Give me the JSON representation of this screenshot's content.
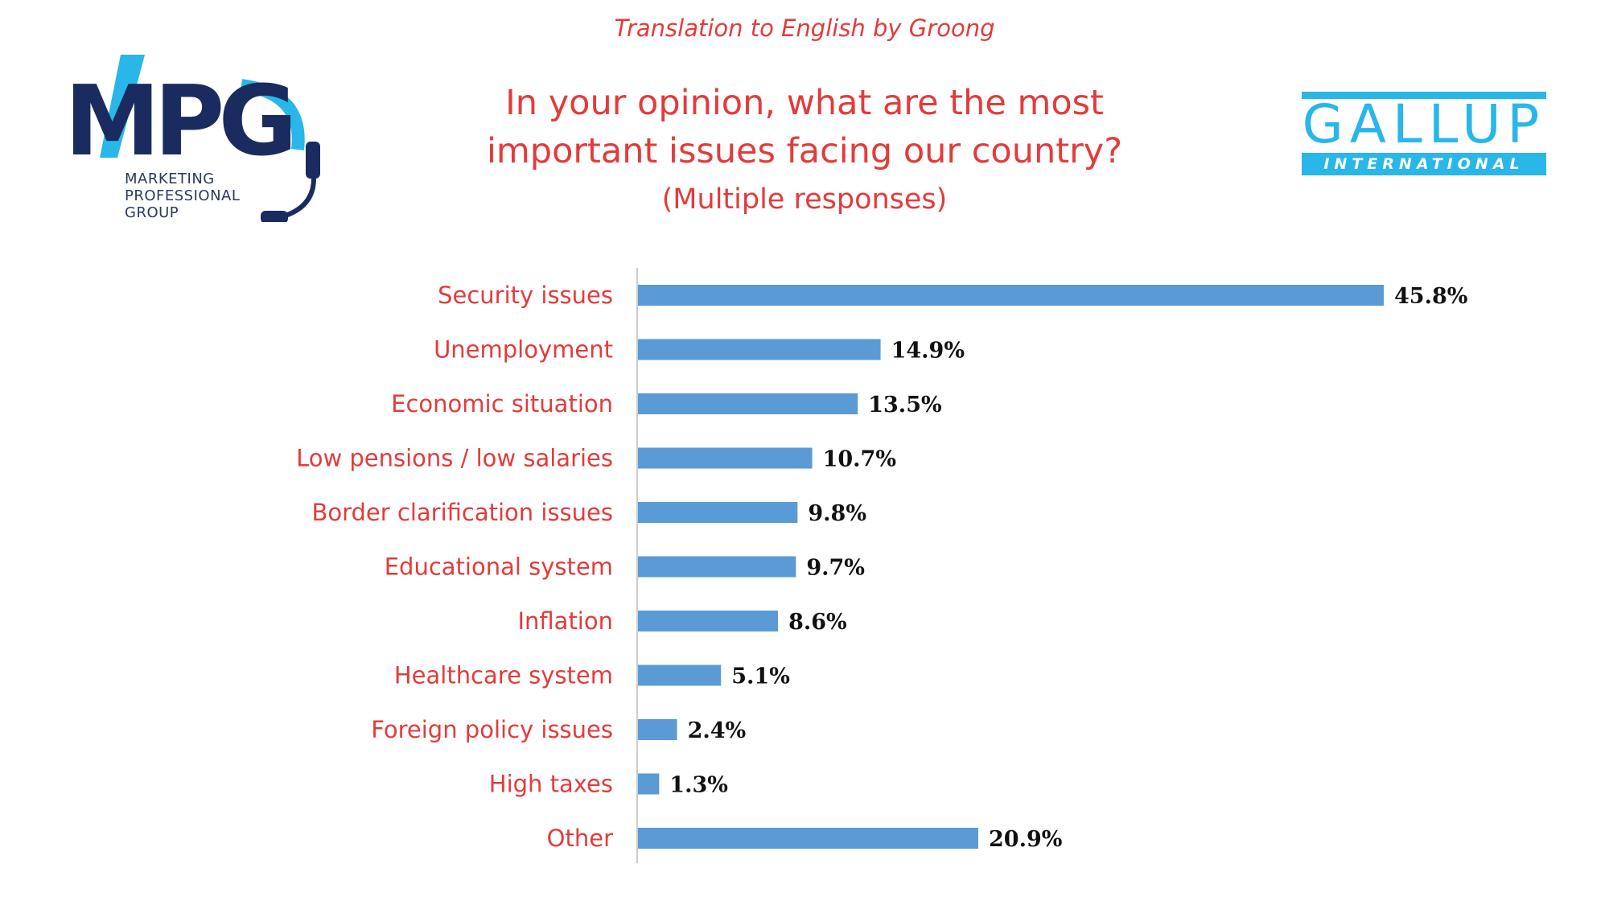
{
  "header": {
    "credit": "Translation to English by Groong",
    "title_line1": "In your opinion, what are the most",
    "title_line2": "important issues facing our country?",
    "subtitle": "(Multiple responses)"
  },
  "logos": {
    "mpg": {
      "letters": "MPG",
      "line1": "MARKETING",
      "line2": "PROFESSIONAL",
      "line3": "GROUP"
    },
    "gallup": {
      "word": "GALLUP",
      "band": "INTERNATIONAL"
    }
  },
  "colors": {
    "title": "#e33b3b",
    "bar": "#5b9bd5",
    "gallup": "#29b6e8",
    "mpg_navy": "#1a2b5f"
  },
  "chart_data": {
    "type": "bar",
    "orientation": "horizontal",
    "categories": [
      "Security issues",
      "Unemployment",
      "Economic situation",
      "Low pensions / low salaries",
      "Border clarification issues",
      "Educational system",
      "Inflation",
      "Healthcare system",
      "Foreign policy issues",
      "High taxes",
      "Other"
    ],
    "values": [
      45.8,
      14.9,
      13.5,
      10.7,
      9.8,
      9.7,
      8.6,
      5.1,
      2.4,
      1.3,
      20.9
    ],
    "value_labels": [
      "45.8%",
      "14.9%",
      "13.5%",
      "10.7%",
      "9.8%",
      "9.7%",
      "8.6%",
      "5.1%",
      "2.4%",
      "1.3%",
      "20.9%"
    ],
    "unit": "%",
    "xlim": [
      0,
      50
    ],
    "grid": false,
    "legend": "none"
  }
}
